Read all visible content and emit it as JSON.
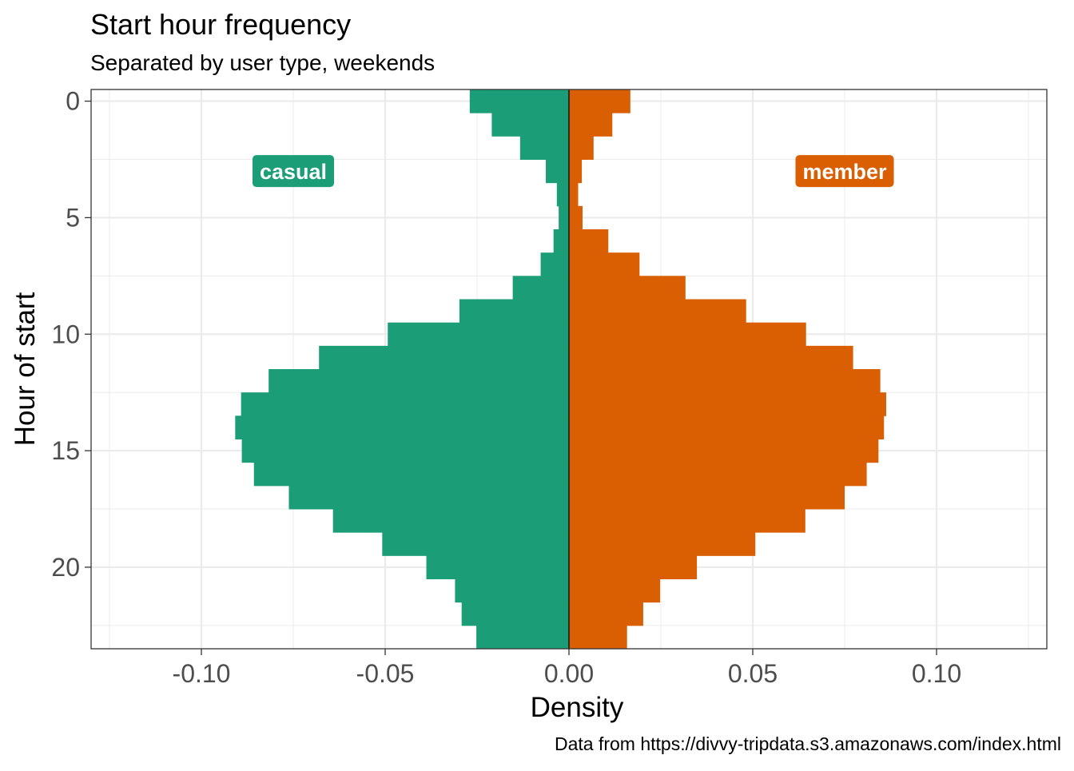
{
  "chart_data": {
    "type": "bar",
    "orientation": "horizontal",
    "title": "Start hour frequency",
    "subtitle": "Separated by user type, weekends",
    "xlabel": "Density",
    "ylabel": "Hour of start",
    "caption": "Data from https://divvy-tripdata.s3.amazonaws.com/index.html",
    "xlim": [
      -0.13,
      0.13
    ],
    "ylim": [
      -0.5,
      23.5
    ],
    "y_reversed": true,
    "x_ticks": [
      -0.1,
      -0.05,
      0.0,
      0.05,
      0.1
    ],
    "x_tick_labels": [
      "-0.10",
      "-0.05",
      "0.00",
      "0.05",
      "0.10"
    ],
    "y_ticks": [
      0,
      5,
      10,
      15,
      20
    ],
    "y_tick_labels": [
      "0",
      "5",
      "10",
      "15",
      "20"
    ],
    "grid": true,
    "categories": [
      0,
      1,
      2,
      3,
      4,
      5,
      6,
      7,
      8,
      9,
      10,
      11,
      12,
      13,
      14,
      15,
      16,
      17,
      18,
      19,
      20,
      21,
      22,
      23
    ],
    "series": [
      {
        "name": "casual",
        "color": "#1b9e77",
        "label_position": [
          -0.075,
          3
        ],
        "values": [
          -0.027,
          -0.021,
          -0.0133,
          -0.0063,
          -0.0033,
          -0.0028,
          -0.0042,
          -0.0077,
          -0.0153,
          -0.0298,
          -0.0493,
          -0.068,
          -0.0817,
          -0.0892,
          -0.0908,
          -0.089,
          -0.0857,
          -0.0762,
          -0.0642,
          -0.0508,
          -0.0388,
          -0.031,
          -0.0292,
          -0.0252
        ]
      },
      {
        "name": "member",
        "color": "#d95f02",
        "label_position": [
          0.075,
          3
        ],
        "values": [
          0.0167,
          0.0118,
          0.0067,
          0.0035,
          0.0025,
          0.0037,
          0.0107,
          0.0192,
          0.0317,
          0.0482,
          0.0645,
          0.0773,
          0.0847,
          0.0863,
          0.0857,
          0.0842,
          0.081,
          0.075,
          0.0643,
          0.0507,
          0.0348,
          0.0248,
          0.0202,
          0.0158
        ]
      }
    ]
  }
}
